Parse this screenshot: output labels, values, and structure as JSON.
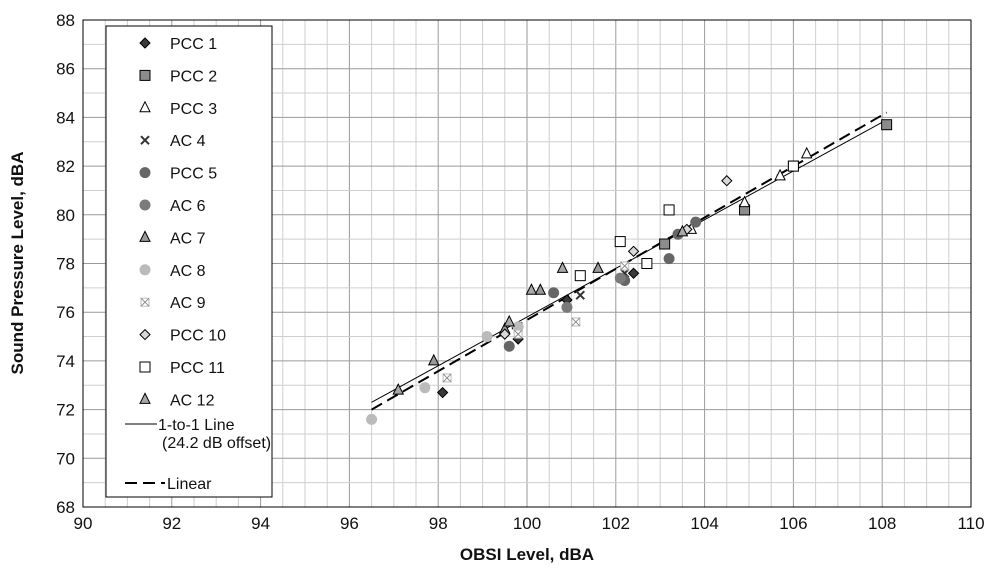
{
  "chart_data": {
    "type": "scatter",
    "xlabel": "OBSI Level, dBA",
    "ylabel": "Sound Pressure Level, dBA",
    "xlim": [
      90,
      110
    ],
    "ylim": [
      68,
      88
    ],
    "x_ticks": [
      "90",
      "92",
      "94",
      "96",
      "98",
      "100",
      "102",
      "104",
      "106",
      "108",
      "110"
    ],
    "y_ticks": [
      "68",
      "70",
      "72",
      "74",
      "76",
      "78",
      "80",
      "82",
      "84",
      "86",
      "88"
    ],
    "grid": true,
    "legend_position": "top-left",
    "series": [
      {
        "name": "PCC 1",
        "marker": "diamond",
        "color": "#3a3a3a",
        "points": [
          [
            98.1,
            72.7
          ],
          [
            99.8,
            74.9
          ],
          [
            100.9,
            76.5
          ],
          [
            102.4,
            77.6
          ]
        ]
      },
      {
        "name": "PCC 2",
        "marker": "square",
        "color": "#8c8c8c",
        "points": [
          [
            103.1,
            78.8
          ],
          [
            104.9,
            80.2
          ],
          [
            106.0,
            82.0
          ],
          [
            108.1,
            83.7
          ]
        ]
      },
      {
        "name": "PCC 3",
        "marker": "triangle-open",
        "color": "#ffffff",
        "points": [
          [
            103.7,
            79.4
          ],
          [
            104.9,
            80.5
          ],
          [
            105.7,
            81.6
          ],
          [
            106.3,
            82.5
          ]
        ]
      },
      {
        "name": "AC 4",
        "marker": "x",
        "color": "#333333",
        "points": [
          [
            101.2,
            76.7
          ],
          [
            102.2,
            77.6
          ]
        ]
      },
      {
        "name": "PCC 5",
        "marker": "circle",
        "color": "#666666",
        "points": [
          [
            99.6,
            74.6
          ],
          [
            100.6,
            76.8
          ],
          [
            102.2,
            77.3
          ],
          [
            103.2,
            78.2
          ],
          [
            103.4,
            79.2
          ],
          [
            103.8,
            79.7
          ]
        ]
      },
      {
        "name": "AC 6",
        "marker": "circle",
        "color": "#7a7a7a",
        "points": [
          [
            100.9,
            76.2
          ],
          [
            102.1,
            77.4
          ]
        ]
      },
      {
        "name": "AC 7",
        "marker": "triangle",
        "color": "#9a9a9a",
        "points": [
          [
            97.9,
            74.0
          ],
          [
            99.5,
            75.3
          ],
          [
            100.3,
            76.9
          ],
          [
            101.6,
            77.8
          ]
        ]
      },
      {
        "name": "AC 8",
        "marker": "circle",
        "color": "#bbbbbb",
        "points": [
          [
            96.5,
            71.6
          ],
          [
            97.7,
            72.9
          ],
          [
            99.1,
            75.0
          ],
          [
            99.8,
            75.4
          ]
        ]
      },
      {
        "name": "AC 9",
        "marker": "xbox",
        "color": "#d0d0d0",
        "points": [
          [
            98.2,
            73.3
          ],
          [
            99.8,
            75.1
          ],
          [
            101.1,
            75.6
          ],
          [
            102.2,
            77.9
          ]
        ]
      },
      {
        "name": "PCC 10",
        "marker": "diamond-open",
        "color": "#d8d8d8",
        "points": [
          [
            99.5,
            75.1
          ],
          [
            102.4,
            78.5
          ],
          [
            103.6,
            79.4
          ],
          [
            104.5,
            81.4
          ]
        ]
      },
      {
        "name": "PCC 11",
        "marker": "square-open",
        "color": "#ffffff",
        "points": [
          [
            102.1,
            78.9
          ],
          [
            102.7,
            78.0
          ],
          [
            101.2,
            77.5
          ],
          [
            103.2,
            80.2
          ],
          [
            106.0,
            82.0
          ]
        ]
      },
      {
        "name": "AC 12",
        "marker": "triangle",
        "color": "#a8a8a8",
        "points": [
          [
            97.1,
            72.8
          ],
          [
            99.6,
            75.6
          ],
          [
            100.1,
            76.9
          ],
          [
            100.8,
            77.8
          ],
          [
            103.5,
            79.3
          ]
        ]
      }
    ],
    "lines": [
      {
        "name": "1-to-1 Line",
        "name2": "(24.2 dB offset)",
        "style": "solid",
        "points": [
          [
            96.5,
            72.3
          ],
          [
            108.1,
            83.9
          ]
        ]
      },
      {
        "name": "Linear",
        "style": "dashed",
        "points": [
          [
            96.5,
            72.0
          ],
          [
            108.1,
            84.2
          ]
        ]
      }
    ]
  }
}
